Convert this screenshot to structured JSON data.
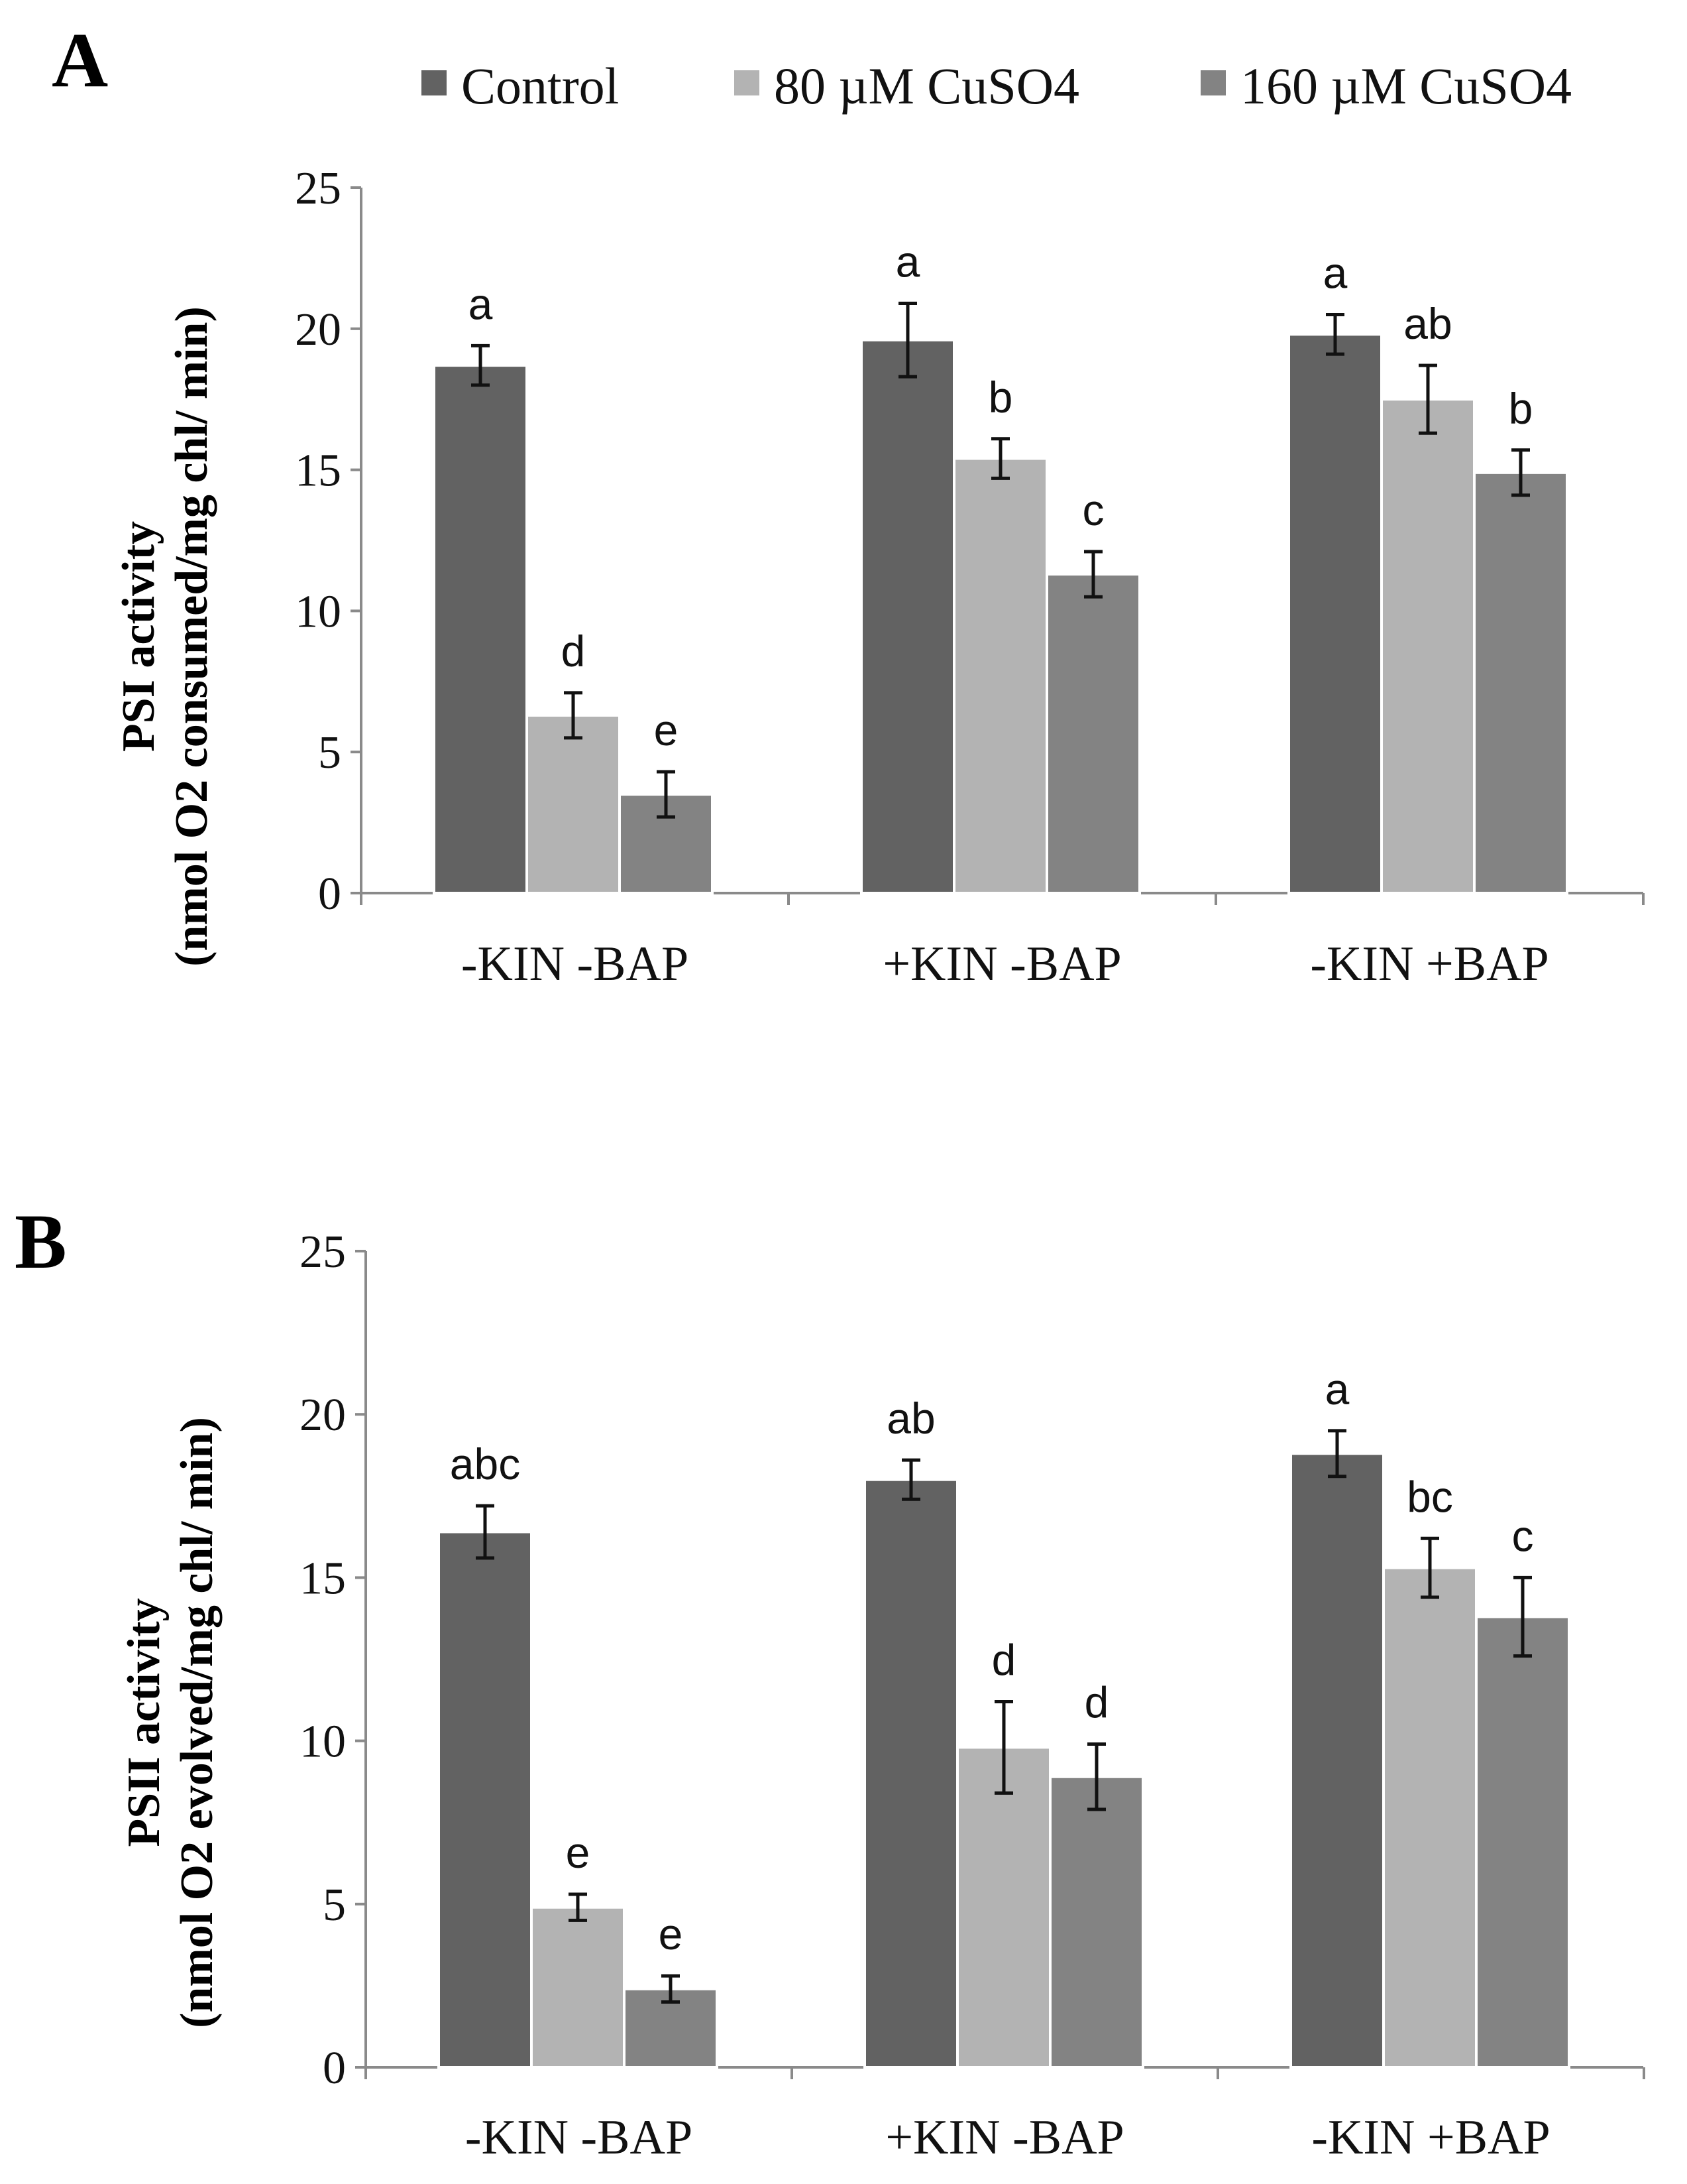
{
  "colors": {
    "control": "#626262",
    "cu80": "#b3b3b3",
    "cu160": "#838383"
  },
  "legend": {
    "items": [
      {
        "label": "Control",
        "key": "control"
      },
      {
        "label": "80 µM CuSO4",
        "key": "cu80"
      },
      {
        "label": "160 µM CuSO4",
        "key": "cu160"
      }
    ]
  },
  "chart_data": [
    {
      "panel": "A",
      "type": "bar",
      "title": "",
      "ylabel_line1": "PSI activity",
      "ylabel_line2": "(nmol O2 consumed/mg chl/ min)",
      "ylim": [
        0,
        25
      ],
      "yticks": [
        0,
        5,
        10,
        15,
        20,
        25
      ],
      "categories": [
        "-KIN -BAP",
        "+KIN -BAP",
        "-KIN +BAP"
      ],
      "series": [
        {
          "name": "Control",
          "key": "control",
          "values": [
            18.7,
            19.6,
            19.8
          ],
          "errors": [
            0.7,
            1.3,
            0.7
          ],
          "letters": [
            "a",
            "a",
            "a"
          ]
        },
        {
          "name": "80 µM CuSO4",
          "key": "cu80",
          "values": [
            6.3,
            15.4,
            17.5
          ],
          "errors": [
            0.8,
            0.7,
            1.2
          ],
          "letters": [
            "d",
            "b",
            "ab"
          ]
        },
        {
          "name": "160 µM CuSO4",
          "key": "cu160",
          "values": [
            3.5,
            11.3,
            14.9
          ],
          "errors": [
            0.8,
            0.8,
            0.8
          ],
          "letters": [
            "e",
            "c",
            "b"
          ]
        }
      ]
    },
    {
      "panel": "B",
      "type": "bar",
      "title": "",
      "ylabel_line1": "PSII activity",
      "ylabel_line2": "(nmol O2 evolved/mg chl/ min)",
      "ylim": [
        0,
        25
      ],
      "yticks": [
        0,
        5,
        10,
        15,
        20,
        25
      ],
      "categories": [
        "-KIN -BAP",
        "+KIN -BAP",
        "-KIN +BAP"
      ],
      "series": [
        {
          "name": "Control",
          "key": "control",
          "values": [
            16.4,
            18.0,
            18.8
          ],
          "errors": [
            0.8,
            0.6,
            0.7
          ],
          "letters": [
            "abc",
            "ab",
            "a"
          ]
        },
        {
          "name": "80 µM CuSO4",
          "key": "cu80",
          "values": [
            4.9,
            9.8,
            15.3
          ],
          "errors": [
            0.4,
            1.4,
            0.9
          ],
          "letters": [
            "e",
            "d",
            "bc"
          ]
        },
        {
          "name": "160 µM CuSO4",
          "key": "cu160",
          "values": [
            2.4,
            8.9,
            13.8
          ],
          "errors": [
            0.4,
            1.0,
            1.2
          ],
          "letters": [
            "e",
            "d",
            "c"
          ]
        }
      ]
    }
  ]
}
